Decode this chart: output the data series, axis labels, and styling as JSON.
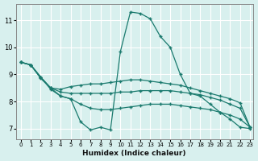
{
  "xlabel": "Humidex (Indice chaleur)",
  "bg_color": "#d8f0ee",
  "grid_color": "#ffffff",
  "line_color": "#1a7a6e",
  "xlim": [
    -0.5,
    23.3
  ],
  "ylim": [
    6.6,
    11.6
  ],
  "yticks": [
    7,
    8,
    9,
    10,
    11
  ],
  "xticks": [
    0,
    1,
    2,
    3,
    4,
    5,
    6,
    7,
    8,
    9,
    10,
    11,
    12,
    13,
    14,
    15,
    16,
    17,
    18,
    19,
    20,
    21,
    22,
    23
  ],
  "line1_x": [
    0,
    1,
    2,
    3,
    4,
    5,
    6,
    7,
    8,
    9,
    10,
    11,
    12,
    13,
    14,
    15,
    16,
    17,
    18,
    19,
    20,
    21,
    22,
    23
  ],
  "line1_y": [
    9.45,
    9.35,
    8.9,
    8.45,
    8.2,
    8.1,
    7.25,
    6.95,
    7.05,
    6.95,
    9.85,
    11.3,
    11.25,
    11.05,
    10.4,
    10.0,
    9.0,
    8.3,
    8.2,
    7.9,
    7.6,
    7.35,
    7.05,
    7.0
  ],
  "line2_x": [
    0,
    1,
    2,
    3,
    4,
    5,
    6,
    7,
    8,
    9,
    10,
    11,
    12,
    13,
    14,
    15,
    16,
    17,
    18,
    19,
    20,
    21,
    22,
    23
  ],
  "line2_y": [
    9.45,
    9.35,
    8.9,
    8.5,
    8.45,
    8.55,
    8.6,
    8.65,
    8.65,
    8.7,
    8.75,
    8.8,
    8.8,
    8.75,
    8.7,
    8.65,
    8.6,
    8.5,
    8.4,
    8.3,
    8.2,
    8.1,
    7.95,
    7.05
  ],
  "line3_x": [
    0,
    1,
    2,
    3,
    4,
    5,
    6,
    7,
    8,
    9,
    10,
    11,
    12,
    13,
    14,
    15,
    16,
    17,
    18,
    19,
    20,
    21,
    22,
    23
  ],
  "line3_y": [
    9.45,
    9.35,
    8.85,
    8.5,
    8.35,
    8.3,
    8.3,
    8.3,
    8.3,
    8.3,
    8.35,
    8.35,
    8.4,
    8.4,
    8.4,
    8.4,
    8.35,
    8.3,
    8.25,
    8.15,
    8.05,
    7.9,
    7.75,
    7.05
  ],
  "line4_x": [
    0,
    1,
    2,
    3,
    4,
    5,
    6,
    7,
    8,
    9,
    10,
    11,
    12,
    13,
    14,
    15,
    16,
    17,
    18,
    19,
    20,
    21,
    22,
    23
  ],
  "line4_y": [
    9.45,
    9.35,
    8.9,
    8.5,
    8.2,
    8.1,
    7.9,
    7.75,
    7.7,
    7.7,
    7.75,
    7.8,
    7.85,
    7.9,
    7.9,
    7.9,
    7.85,
    7.8,
    7.75,
    7.7,
    7.6,
    7.5,
    7.35,
    7.05
  ]
}
